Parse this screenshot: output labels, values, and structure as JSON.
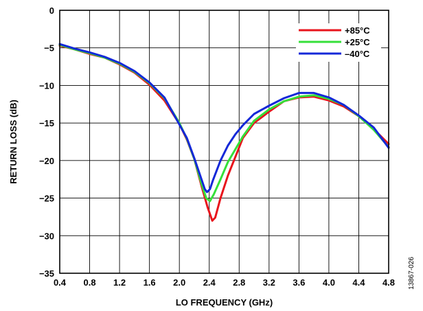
{
  "chart_data": {
    "type": "line",
    "title": "",
    "xlabel": "LO FREQUENCY (GHz)",
    "ylabel": "RETURN LOSS (dB)",
    "xlim": [
      0.4,
      4.8
    ],
    "ylim": [
      -35,
      0
    ],
    "xticks": [
      "0.4",
      "0.8",
      "1.2",
      "1.6",
      "2.0",
      "2.4",
      "2.8",
      "3.2",
      "3.6",
      "4.0",
      "4.4",
      "4.8"
    ],
    "yticks": [
      "0",
      "−5",
      "−10",
      "−15",
      "−20",
      "−25",
      "−30",
      "−35"
    ],
    "grid": true,
    "legend_position": "top-right",
    "series": [
      {
        "name": "+85°C",
        "color": "#e8141c",
        "x": [
          0.4,
          0.6,
          0.8,
          1.0,
          1.2,
          1.4,
          1.6,
          1.8,
          2.0,
          2.1,
          2.2,
          2.3,
          2.38,
          2.44,
          2.48,
          2.55,
          2.65,
          2.75,
          2.85,
          3.0,
          3.2,
          3.4,
          3.6,
          3.8,
          4.0,
          4.2,
          4.4,
          4.6,
          4.8
        ],
        "y": [
          -4.7,
          -5.2,
          -5.8,
          -6.3,
          -7.2,
          -8.3,
          -9.9,
          -12.0,
          -15.1,
          -17.2,
          -19.8,
          -23.5,
          -26.3,
          -28.0,
          -27.6,
          -25.0,
          -22.0,
          -19.5,
          -17.0,
          -15.0,
          -13.5,
          -12.1,
          -11.6,
          -11.5,
          -12.0,
          -12.8,
          -14.1,
          -15.8,
          -17.8
        ]
      },
      {
        "name": "+25°C",
        "color": "#35e03a",
        "x": [
          0.4,
          0.6,
          0.8,
          1.0,
          1.2,
          1.4,
          1.6,
          1.8,
          2.0,
          2.1,
          2.2,
          2.3,
          2.36,
          2.41,
          2.46,
          2.55,
          2.65,
          2.75,
          2.85,
          3.0,
          3.2,
          3.4,
          3.6,
          3.8,
          4.0,
          4.2,
          4.4,
          4.6,
          4.8
        ],
        "y": [
          -4.6,
          -5.2,
          -5.7,
          -6.3,
          -7.1,
          -8.2,
          -9.7,
          -11.7,
          -15.0,
          -17.1,
          -19.8,
          -23.2,
          -25.0,
          -25.4,
          -24.5,
          -22.5,
          -20.2,
          -18.5,
          -16.8,
          -14.7,
          -13.2,
          -12.1,
          -11.5,
          -11.3,
          -11.8,
          -12.6,
          -14.1,
          -15.9,
          -18.2
        ]
      },
      {
        "name": "–40°C",
        "color": "#1428d8",
        "x": [
          0.4,
          0.6,
          0.8,
          1.0,
          1.2,
          1.4,
          1.6,
          1.8,
          2.0,
          2.1,
          2.2,
          2.3,
          2.34,
          2.37,
          2.41,
          2.45,
          2.55,
          2.65,
          2.75,
          2.85,
          3.0,
          3.2,
          3.4,
          3.6,
          3.8,
          4.0,
          4.2,
          4.4,
          4.6,
          4.8
        ],
        "y": [
          -4.5,
          -5.1,
          -5.6,
          -6.2,
          -7.0,
          -8.1,
          -9.6,
          -11.6,
          -15.2,
          -17.0,
          -19.7,
          -22.6,
          -23.8,
          -24.2,
          -23.8,
          -22.6,
          -20.0,
          -18.0,
          -16.5,
          -15.3,
          -13.8,
          -12.7,
          -11.7,
          -11.0,
          -11.0,
          -11.6,
          -12.6,
          -14.0,
          -15.6,
          -18.3
        ]
      }
    ]
  },
  "figure_id": "13867-026"
}
